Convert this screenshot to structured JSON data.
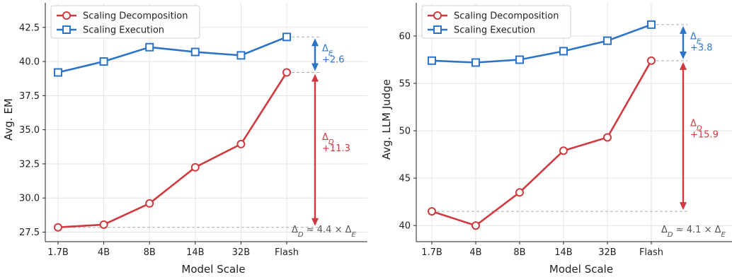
{
  "chart_data": [
    {
      "type": "line",
      "xlabel": "Model Scale",
      "ylabel": "Avg. EM",
      "categories": [
        "1.7B",
        "4B",
        "8B",
        "14B",
        "32B",
        "Flash"
      ],
      "yticks": [
        27.5,
        30.0,
        32.5,
        35.0,
        37.5,
        40.0,
        42.5
      ],
      "ylim": [
        26.8,
        44.3
      ],
      "grid": true,
      "legend": "top-left",
      "series": [
        {
          "name": "Scaling Decomposition",
          "color": "#d0393e",
          "marker": "circle",
          "values": [
            27.85,
            28.05,
            29.6,
            32.25,
            33.95,
            39.2
          ]
        },
        {
          "name": "Scaling Execution",
          "color": "#2c74c9",
          "marker": "square",
          "values": [
            39.2,
            40.0,
            41.05,
            40.7,
            40.45,
            41.8
          ]
        }
      ],
      "annotations": {
        "delta_e": {
          "symbol": "Δ",
          "sub": "E",
          "value": "+2.6",
          "from": 39.2,
          "to": 41.8
        },
        "delta_d": {
          "symbol": "Δ",
          "sub": "D",
          "value": "+11.3",
          "from": 27.85,
          "to": 39.2
        },
        "ratio": {
          "lhs": "Δ",
          "lhs_sub": "D",
          "text": " ≈ 4.4 ×  ",
          "rhs": "Δ",
          "rhs_sub": "E"
        }
      }
    },
    {
      "type": "line",
      "xlabel": "Model Scale",
      "ylabel": "Avg. LLM Judge",
      "categories": [
        "1.7B",
        "4B",
        "8B",
        "14B",
        "32B",
        "Flash"
      ],
      "yticks": [
        40,
        45,
        50,
        55,
        60
      ],
      "ylim": [
        38.3,
        63.5
      ],
      "grid": true,
      "legend": "top-left",
      "series": [
        {
          "name": "Scaling Decomposition",
          "color": "#d0393e",
          "marker": "circle",
          "values": [
            41.5,
            40.0,
            43.5,
            47.9,
            49.3,
            57.4
          ]
        },
        {
          "name": "Scaling Execution",
          "color": "#2c74c9",
          "marker": "square",
          "values": [
            57.4,
            57.2,
            57.5,
            58.4,
            59.5,
            61.2
          ]
        }
      ],
      "annotations": {
        "delta_e": {
          "symbol": "Δ",
          "sub": "E",
          "value": "+3.8",
          "from": 57.4,
          "to": 61.2
        },
        "delta_d": {
          "symbol": "Δ",
          "sub": "D",
          "value": "+15.9",
          "from": 41.5,
          "to": 57.4
        },
        "ratio": {
          "lhs": "Δ",
          "lhs_sub": "D",
          "text": " ≈ 4.1 ×  ",
          "rhs": "Δ",
          "rhs_sub": "E"
        }
      }
    }
  ]
}
